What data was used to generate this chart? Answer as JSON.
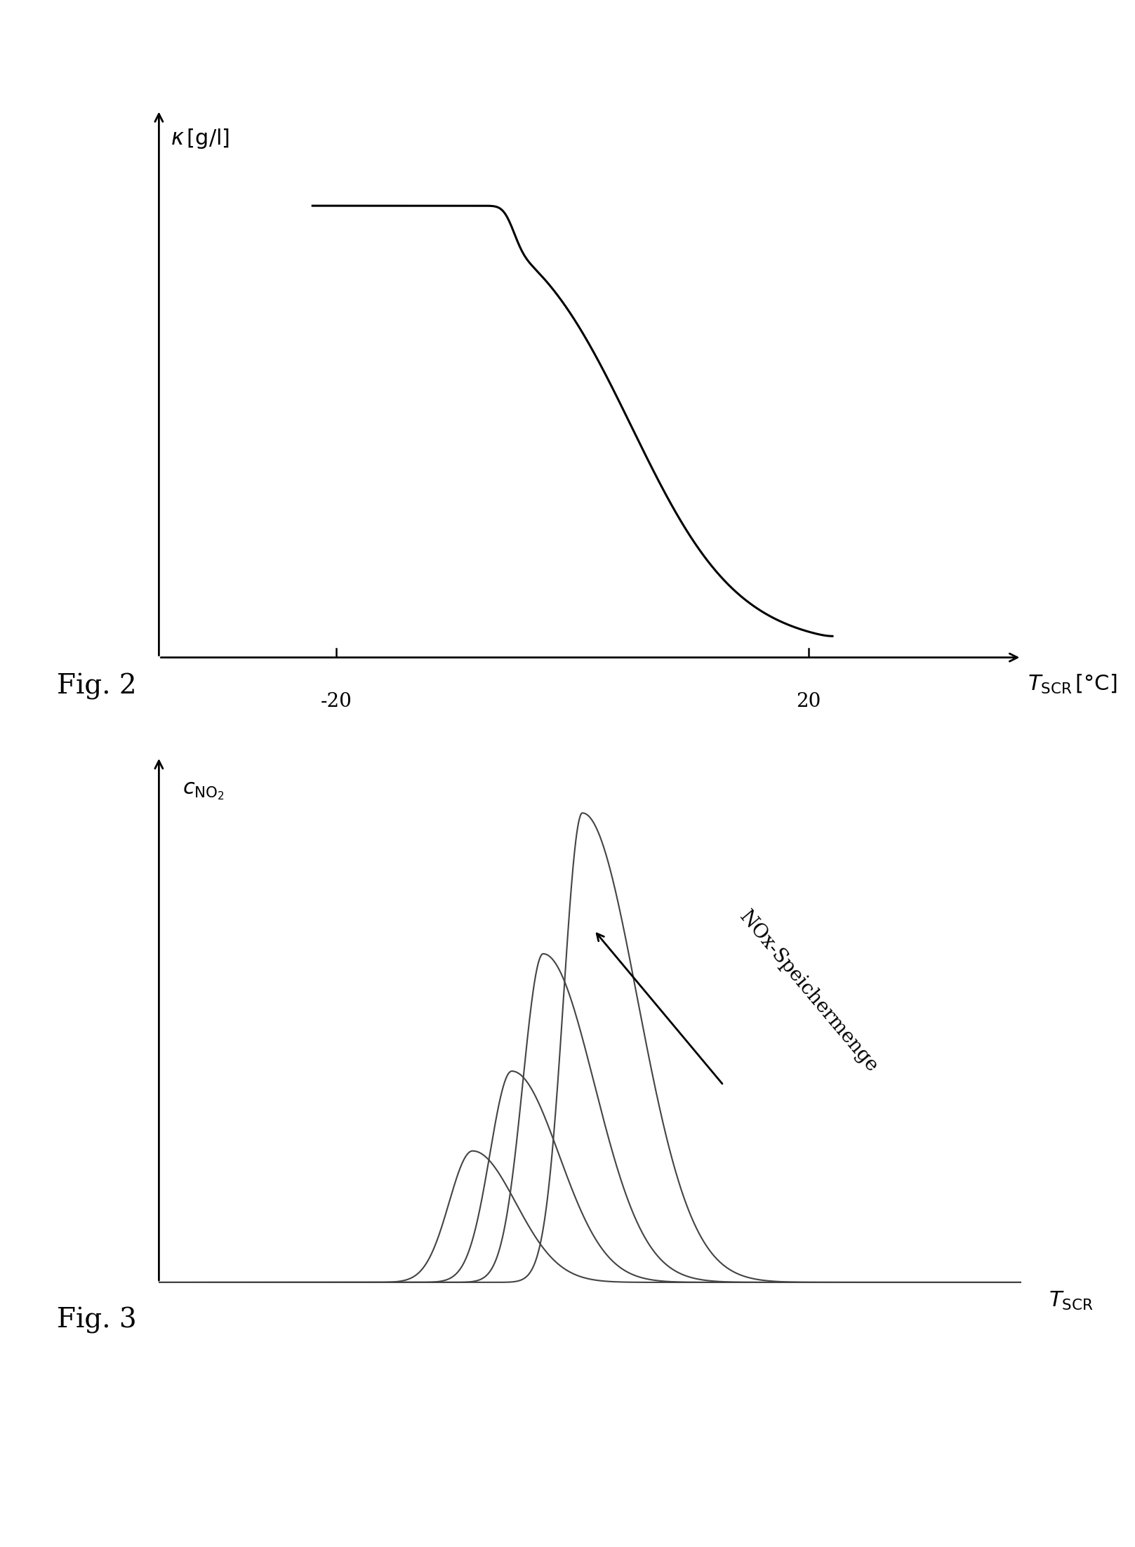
{
  "fig2_ylabel": "κ [g/l]",
  "fig2_xlabel": "T_SCR [°C]",
  "fig2_xticks": [
    -20,
    20
  ],
  "fig2_xlim": [
    -35,
    38
  ],
  "fig2_ylim": [
    0,
    1.15
  ],
  "fig3_ylabel": "c_NO2",
  "fig3_xlabel": "T_SCR",
  "fig3_annotation": "NOx-Speichermenge",
  "background_color": "#ffffff",
  "line_color": "#000000",
  "curve_color": "#444444",
  "fig2_label": "Fig. 2",
  "fig3_label": "Fig. 3",
  "curves": [
    {
      "mu": 3.0,
      "sigma_l": 0.3,
      "sigma_r": 0.55,
      "amp": 0.28
    },
    {
      "mu": 3.5,
      "sigma_l": 0.28,
      "sigma_r": 0.6,
      "amp": 0.45
    },
    {
      "mu": 3.9,
      "sigma_l": 0.26,
      "sigma_r": 0.65,
      "amp": 0.7
    },
    {
      "mu": 4.4,
      "sigma_l": 0.24,
      "sigma_r": 0.7,
      "amp": 1.0
    }
  ]
}
